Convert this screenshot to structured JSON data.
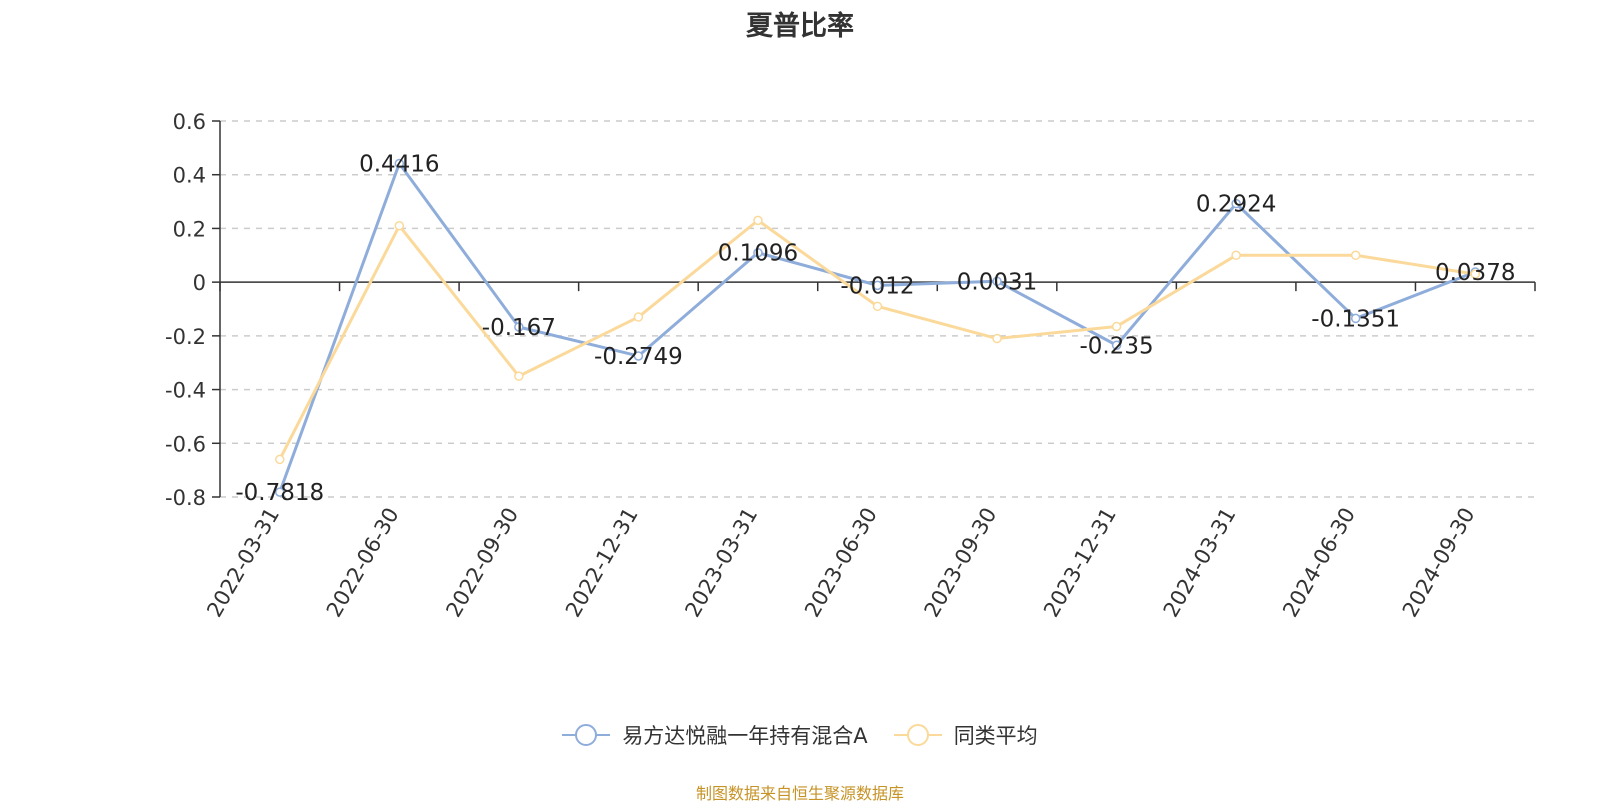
{
  "chart_title": "夏普比率",
  "source_note": "制图数据来自恒生聚源数据库",
  "chart_data": {
    "type": "line",
    "title": "夏普比率",
    "x": [
      "2022-03-31",
      "2022-06-30",
      "2022-09-30",
      "2022-12-31",
      "2023-03-31",
      "2023-06-30",
      "2023-09-30",
      "2023-12-31",
      "2024-03-31",
      "2024-06-30",
      "2024-09-30"
    ],
    "xlabel": "",
    "ylabel": "",
    "ylim": [
      -0.8,
      0.6
    ],
    "yticks": [
      "0.6",
      "0.4",
      "0.2",
      "0",
      "-0.2",
      "-0.4",
      "-0.6",
      "-0.8"
    ],
    "ytick_values": [
      0.6,
      0.4,
      0.2,
      0,
      -0.2,
      -0.4,
      -0.6,
      -0.8
    ],
    "grid": "dashed horizontal",
    "legend": "bottom-center",
    "series": [
      {
        "name": "易方达悦融一年持有混合A",
        "color": "#8faddb",
        "values": [
          -0.7818,
          0.4416,
          -0.167,
          -0.2749,
          0.1096,
          -0.012,
          0.0031,
          -0.235,
          0.2924,
          -0.1351,
          0.0378
        ],
        "labels": [
          "-0.7818",
          "0.4416",
          "-0.167",
          "-0.2749",
          "0.1096",
          "-0.012",
          "0.0031",
          "-0.235",
          "0.2924",
          "-0.1351",
          "0.0378"
        ]
      },
      {
        "name": "同类平均",
        "color": "#fbd99a",
        "values": [
          -0.66,
          0.21,
          -0.35,
          -0.13,
          0.23,
          -0.09,
          -0.21,
          -0.165,
          0.1,
          0.1,
          0.03
        ]
      }
    ]
  }
}
